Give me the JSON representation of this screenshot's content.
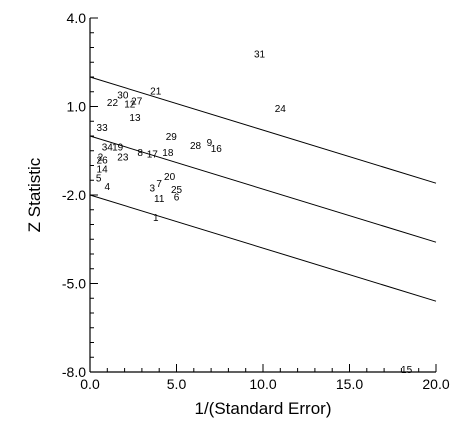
{
  "chart_data": {
    "type": "scatter",
    "title": "",
    "xlabel": "1/(Standard Error)",
    "ylabel": "Z Statistic",
    "xlim": [
      0,
      20
    ],
    "ylim": [
      -8,
      4
    ],
    "x_ticks": [
      0,
      5,
      10,
      15,
      20
    ],
    "x_tick_labels": [
      "0.0",
      "5.0",
      "10.0",
      "15.0",
      "20.0"
    ],
    "y_ticks": [
      4,
      1,
      -2,
      -5,
      -8
    ],
    "y_tick_labels": [
      "4.0",
      "1.0",
      "-2.0",
      "-5.0",
      "-8.0"
    ],
    "grid": false,
    "points": [
      {
        "label": "1",
        "x": 3.8,
        "y": -2.75
      },
      {
        "label": "2",
        "x": 0.6,
        "y": -0.7
      },
      {
        "label": "3",
        "x": 3.6,
        "y": -1.75
      },
      {
        "label": "4",
        "x": 1.0,
        "y": -1.7
      },
      {
        "label": "5",
        "x": 0.5,
        "y": -1.4
      },
      {
        "label": "6",
        "x": 5.0,
        "y": -2.05
      },
      {
        "label": "7",
        "x": 4.0,
        "y": -1.6
      },
      {
        "label": "8",
        "x": 2.9,
        "y": -0.55
      },
      {
        "label": "9",
        "x": 6.9,
        "y": -0.2
      },
      {
        "label": "11",
        "x": 4.0,
        "y": -2.1
      },
      {
        "label": "12",
        "x": 2.3,
        "y": 1.1
      },
      {
        "label": "13",
        "x": 2.6,
        "y": 0.65
      },
      {
        "label": "14",
        "x": 0.7,
        "y": -1.1
      },
      {
        "label": "15",
        "x": 18.3,
        "y": -7.9
      },
      {
        "label": "16",
        "x": 7.3,
        "y": -0.4
      },
      {
        "label": "17",
        "x": 3.6,
        "y": -0.6
      },
      {
        "label": "18",
        "x": 4.5,
        "y": -0.55
      },
      {
        "label": "19",
        "x": 1.6,
        "y": -0.35
      },
      {
        "label": "20",
        "x": 4.6,
        "y": -1.35
      },
      {
        "label": "21",
        "x": 3.8,
        "y": 1.55
      },
      {
        "label": "22",
        "x": 1.3,
        "y": 1.15
      },
      {
        "label": "23",
        "x": 1.9,
        "y": -0.7
      },
      {
        "label": "24",
        "x": 11.0,
        "y": 0.95
      },
      {
        "label": "25",
        "x": 5.0,
        "y": -1.8
      },
      {
        "label": "26",
        "x": 0.7,
        "y": -0.8
      },
      {
        "label": "27",
        "x": 2.7,
        "y": 1.2
      },
      {
        "label": "28",
        "x": 6.1,
        "y": -0.3
      },
      {
        "label": "29",
        "x": 4.7,
        "y": 0.0
      },
      {
        "label": "30",
        "x": 1.9,
        "y": 1.4
      },
      {
        "label": "31",
        "x": 9.8,
        "y": 2.8
      },
      {
        "label": "33",
        "x": 0.7,
        "y": 0.3
      },
      {
        "label": "34",
        "x": 1.0,
        "y": -0.35
      }
    ],
    "lines": [
      {
        "intercept": 2.0,
        "slope": -0.18
      },
      {
        "intercept": 0.0,
        "slope": -0.18
      },
      {
        "intercept": -2.0,
        "slope": -0.18
      }
    ]
  }
}
